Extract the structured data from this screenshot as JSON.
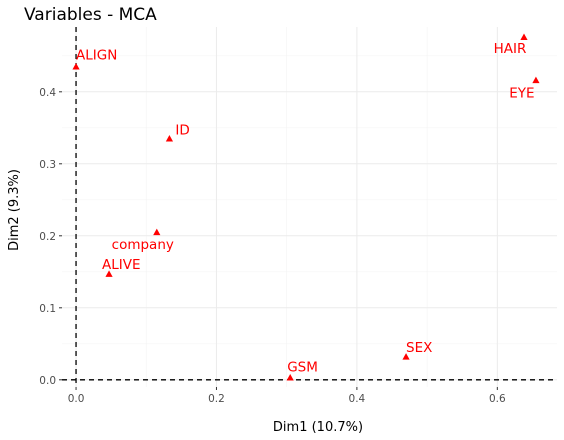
{
  "chart_data": {
    "type": "scatter",
    "title": "Variables - MCA",
    "xlabel": "Dim1 (10.7%)",
    "ylabel": "Dim2 (9.3%)",
    "xlim": [
      -0.02,
      0.685
    ],
    "ylim": [
      -0.01,
      0.49
    ],
    "xticks": [
      0,
      0.2,
      0.4,
      0.6
    ],
    "xtick_labels": [
      "0.0",
      "0.2",
      "0.4",
      "0.6"
    ],
    "yticks": [
      0,
      0.1,
      0.2,
      0.3,
      0.4
    ],
    "ytick_labels": [
      "0.0",
      "0.1",
      "0.2",
      "0.3",
      "0.4"
    ],
    "grid": true,
    "reference_lines": {
      "x": 0,
      "y": 0
    },
    "marker": "triangle",
    "color": "#ff0000",
    "points": [
      {
        "label": "ALIGN",
        "x": 0.0,
        "y": 0.435
      },
      {
        "label": "HAIR",
        "x": 0.638,
        "y": 0.476
      },
      {
        "label": "EYE",
        "x": 0.655,
        "y": 0.416
      },
      {
        "label": "ID",
        "x": 0.133,
        "y": 0.335
      },
      {
        "label": "company",
        "x": 0.115,
        "y": 0.205
      },
      {
        "label": "ALIVE",
        "x": 0.047,
        "y": 0.147
      },
      {
        "label": "SEX",
        "x": 0.47,
        "y": 0.032
      },
      {
        "label": "GSM",
        "x": 0.305,
        "y": 0.003
      }
    ]
  }
}
